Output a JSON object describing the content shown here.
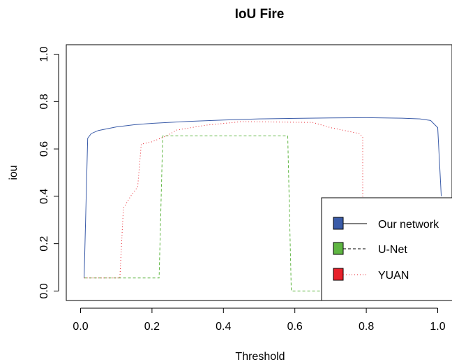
{
  "chart_data": {
    "type": "line",
    "title": "IoU Fire",
    "xlabel": "Threshold",
    "ylabel": "iou",
    "xlim": [
      -0.04,
      1.04
    ],
    "ylim": [
      -0.04,
      1.04
    ],
    "xticks": [
      "0.0",
      "0.2",
      "0.4",
      "0.6",
      "0.8",
      "1.0"
    ],
    "yticks": [
      "0.0",
      "0.2",
      "0.4",
      "0.6",
      "0.8",
      "1.0"
    ],
    "grid": false,
    "legend_position": "bottom-right",
    "series": [
      {
        "name": "Our network",
        "color": "#3a5ba8",
        "dash": "solid",
        "points": [
          [
            0.01,
            0.055
          ],
          [
            0.02,
            0.645
          ],
          [
            0.03,
            0.665
          ],
          [
            0.05,
            0.678
          ],
          [
            0.1,
            0.693
          ],
          [
            0.15,
            0.702
          ],
          [
            0.2,
            0.708
          ],
          [
            0.3,
            0.716
          ],
          [
            0.4,
            0.722
          ],
          [
            0.5,
            0.727
          ],
          [
            0.6,
            0.729
          ],
          [
            0.7,
            0.731
          ],
          [
            0.8,
            0.732
          ],
          [
            0.9,
            0.73
          ],
          [
            0.95,
            0.727
          ],
          [
            0.98,
            0.72
          ],
          [
            1.0,
            0.69
          ],
          [
            1.01,
            0.4
          ]
        ]
      },
      {
        "name": "U-Net",
        "color": "#5fb642",
        "dash": "dashed",
        "points": [
          [
            0.01,
            0.055
          ],
          [
            0.22,
            0.055
          ],
          [
            0.23,
            0.655
          ],
          [
            0.58,
            0.655
          ],
          [
            0.59,
            0.0
          ],
          [
            0.68,
            0.0
          ]
        ]
      },
      {
        "name": "YUAN",
        "color": "#e8212b",
        "dash": "dotted",
        "points": [
          [
            0.01,
            0.055
          ],
          [
            0.11,
            0.055
          ],
          [
            0.12,
            0.35
          ],
          [
            0.14,
            0.4
          ],
          [
            0.16,
            0.44
          ],
          [
            0.17,
            0.62
          ],
          [
            0.2,
            0.63
          ],
          [
            0.24,
            0.655
          ],
          [
            0.27,
            0.68
          ],
          [
            0.35,
            0.7
          ],
          [
            0.45,
            0.715
          ],
          [
            0.65,
            0.712
          ],
          [
            0.7,
            0.69
          ],
          [
            0.78,
            0.665
          ],
          [
            0.79,
            0.65
          ],
          [
            0.79,
            0.3
          ]
        ]
      }
    ]
  }
}
